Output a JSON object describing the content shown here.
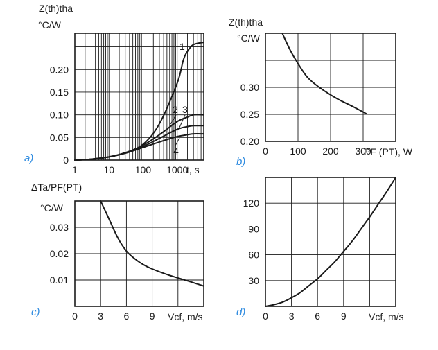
{
  "chart_data": [
    {
      "id": "a",
      "type": "line",
      "panel_label": "a)",
      "ylabel_line1": "Z(th)tha",
      "ylabel_line2": "°C/W",
      "xlabel": "t, s",
      "x_scale": "log",
      "xlim": [
        1,
        6000
      ],
      "ylim": [
        0,
        0.28
      ],
      "grid": true,
      "x_ticks": [
        1,
        10,
        100,
        1000
      ],
      "x_tick_labels": [
        "1",
        "10",
        "100",
        "1000"
      ],
      "y_ticks": [
        0,
        0.05,
        0.1,
        0.15,
        0.2
      ],
      "y_tick_labels": [
        "0",
        "0.05",
        "0.10",
        "0.15",
        "0.20"
      ],
      "annotations": [
        "1",
        "2",
        "3",
        "4"
      ],
      "series": [
        {
          "x": [
            1,
            3,
            10,
            30,
            100,
            300,
            1000,
            1500,
            2000,
            3000,
            6000
          ],
          "y": [
            0,
            0.002,
            0.007,
            0.016,
            0.035,
            0.08,
            0.17,
            0.22,
            0.24,
            0.255,
            0.26
          ]
        },
        {
          "x": [
            1,
            3,
            10,
            30,
            100,
            300,
            1000,
            2000,
            3000,
            6000
          ],
          "y": [
            0,
            0.002,
            0.007,
            0.016,
            0.033,
            0.056,
            0.085,
            0.095,
            0.1,
            0.1
          ]
        },
        {
          "x": [
            1,
            3,
            10,
            30,
            100,
            300,
            1000,
            2000,
            3000,
            6000
          ],
          "y": [
            0,
            0.002,
            0.007,
            0.016,
            0.03,
            0.048,
            0.068,
            0.074,
            0.076,
            0.076
          ]
        },
        {
          "x": [
            1,
            3,
            10,
            30,
            100,
            300,
            1000,
            2000,
            3000,
            6000
          ],
          "y": [
            0,
            0.002,
            0.007,
            0.015,
            0.028,
            0.04,
            0.052,
            0.056,
            0.058,
            0.058
          ]
        }
      ]
    },
    {
      "id": "b",
      "type": "line",
      "panel_label": "b)",
      "ylabel_line1": "Z(th)tha",
      "ylabel_line2": "°C/W",
      "xlabel": "PF (PT), W",
      "xlim": [
        0,
        400
      ],
      "ylim": [
        0.2,
        0.4
      ],
      "grid": true,
      "x_ticks": [
        0,
        100,
        200,
        300
      ],
      "x_tick_labels": [
        "0",
        "100",
        "200",
        "300"
      ],
      "y_ticks": [
        0.2,
        0.25,
        0.3
      ],
      "y_tick_labels": [
        "0.20",
        "0.25",
        "0.30"
      ],
      "series": [
        {
          "x": [
            52,
            75,
            100,
            130,
            170,
            220,
            270,
            310
          ],
          "y": [
            0.4,
            0.37,
            0.344,
            0.318,
            0.298,
            0.279,
            0.264,
            0.251
          ]
        }
      ]
    },
    {
      "id": "c",
      "type": "line",
      "panel_label": "c)",
      "ylabel_line1": "ΔTa/PF(PT)",
      "ylabel_line2": "°C/W",
      "xlabel": "Vcf, m/s",
      "xlim": [
        0,
        15
      ],
      "ylim": [
        0,
        0.04
      ],
      "grid": true,
      "x_ticks": [
        0,
        3,
        6,
        9
      ],
      "x_tick_labels": [
        "0",
        "3",
        "6",
        "9"
      ],
      "y_ticks": [
        0.01,
        0.02,
        0.03
      ],
      "y_tick_labels": [
        "0.01",
        "0.02",
        "0.03"
      ],
      "series": [
        {
          "x": [
            3,
            4,
            5,
            6,
            7,
            8,
            9,
            11,
            13,
            15
          ],
          "y": [
            0.04,
            0.033,
            0.026,
            0.021,
            0.018,
            0.0158,
            0.0142,
            0.0118,
            0.0098,
            0.0077
          ]
        }
      ]
    },
    {
      "id": "d",
      "type": "line",
      "panel_label": "d)",
      "ylabel_line1": "",
      "ylabel_line2": "",
      "xlabel": "Vcf, m/s",
      "xlim": [
        0,
        15
      ],
      "ylim": [
        0,
        150
      ],
      "grid": true,
      "x_ticks": [
        0,
        3,
        6,
        9
      ],
      "x_tick_labels": [
        "0",
        "3",
        "6",
        "9"
      ],
      "y_ticks": [
        30,
        60,
        90,
        120
      ],
      "y_tick_labels": [
        "30",
        "60",
        "90",
        "120"
      ],
      "series": [
        {
          "x": [
            0,
            1,
            2,
            3,
            4,
            5,
            6,
            7,
            8,
            9,
            10,
            11,
            12,
            13,
            14,
            15
          ],
          "y": [
            0,
            2,
            5,
            10,
            16,
            24,
            32,
            42,
            52,
            64,
            76,
            90,
            104,
            119,
            134,
            150
          ]
        }
      ]
    }
  ]
}
